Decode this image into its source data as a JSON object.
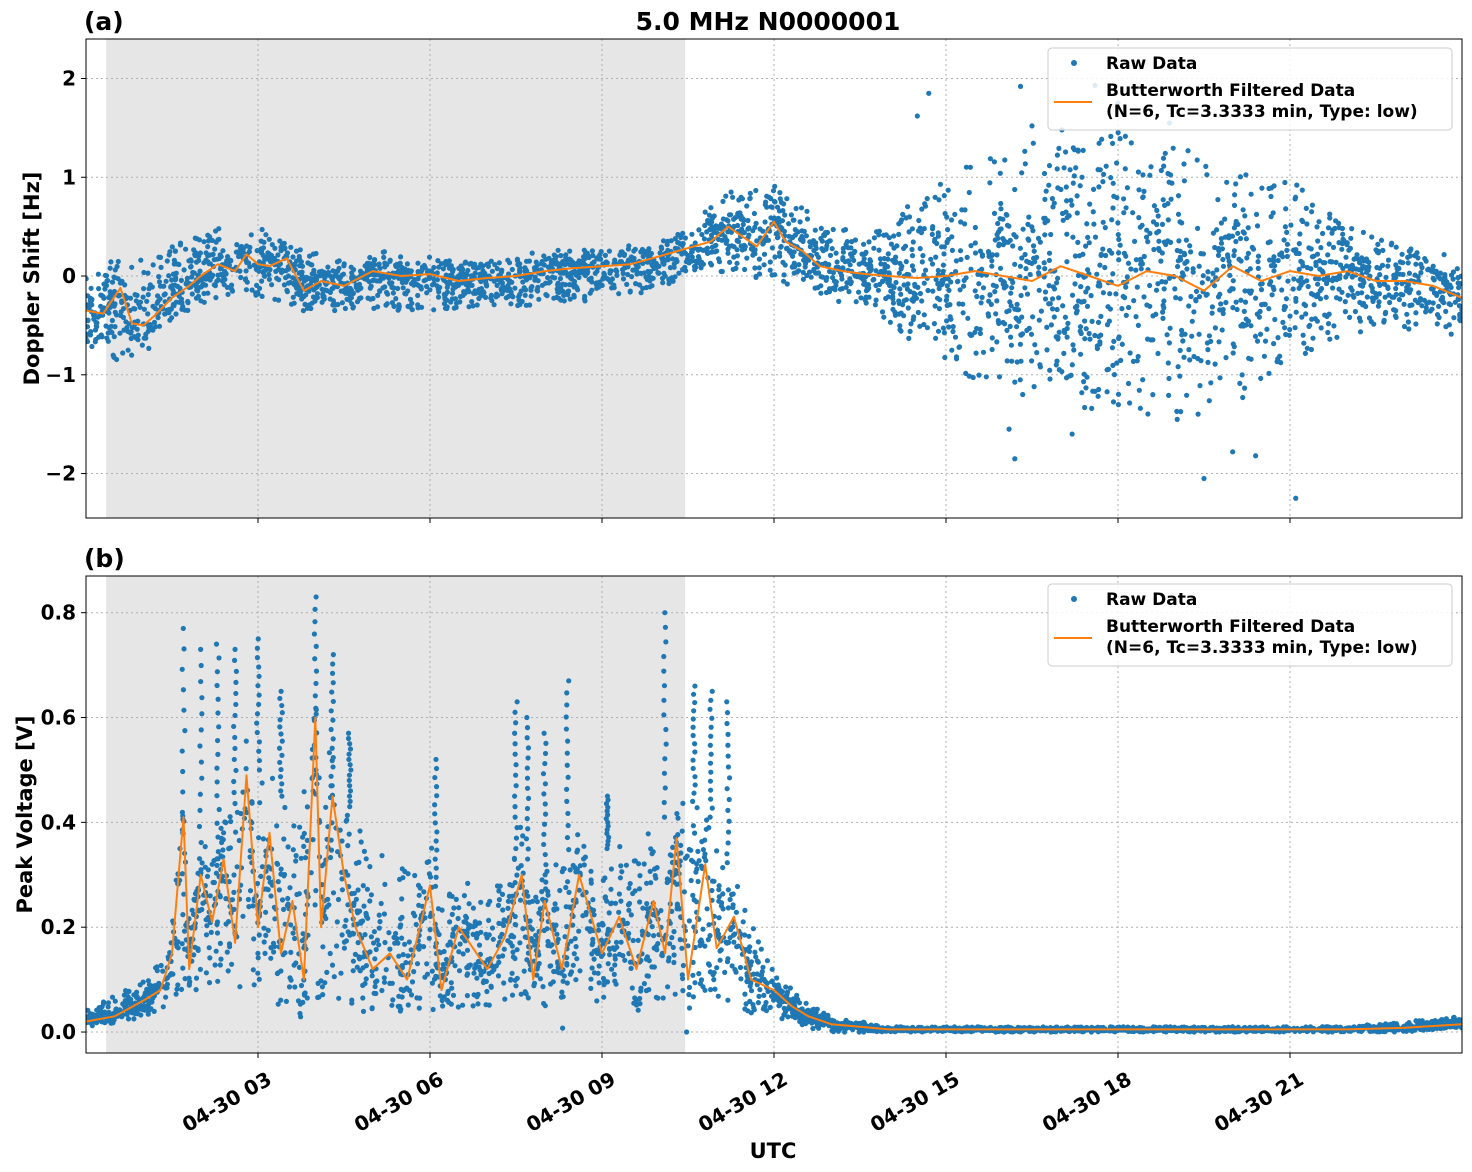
{
  "figure": {
    "title": "5.0 MHz N0000001",
    "xlabel": "UTC",
    "x_tick_labels": [
      "04-30 03",
      "04-30 06",
      "04-30 09",
      "04-30 12",
      "04-30 15",
      "04-30 18",
      "04-30 21"
    ]
  },
  "chart_data": [
    {
      "type": "scatter",
      "panel_label": "(a)",
      "ylabel": "Doppler Shift [Hz]",
      "x_unit": "UTC hour of 04-30",
      "xlim": [
        0.0,
        24.0
      ],
      "ylim": [
        -2.45,
        2.4
      ],
      "yticks": [
        -2,
        -1,
        0,
        1,
        2
      ],
      "ytick_labels": [
        "−2",
        "−1",
        "0",
        "1",
        "2"
      ],
      "xticks": [
        3,
        6,
        9,
        12,
        15,
        18,
        21
      ],
      "grid": true,
      "legend_position": "upper-right",
      "shaded_span": [
        0.35,
        10.45
      ],
      "series": [
        {
          "name": "Raw Data",
          "marker": "point",
          "color": "#1f77b4",
          "envelope_x": [
            0.0,
            0.5,
            1.0,
            1.5,
            2.0,
            2.5,
            3.0,
            3.5,
            4.0,
            5.0,
            6.0,
            7.0,
            8.0,
            9.0,
            10.0,
            10.5,
            11.0,
            11.5,
            12.0,
            12.5,
            13.0,
            13.5,
            14.0,
            15.0,
            16.0,
            17.0,
            18.0,
            19.0,
            20.0,
            21.0,
            22.0,
            23.0,
            24.0
          ],
          "envelope_low": [
            -0.7,
            -0.9,
            -0.7,
            -0.45,
            -0.3,
            -0.2,
            -0.2,
            -0.3,
            -0.35,
            -0.35,
            -0.35,
            -0.3,
            -0.3,
            -0.25,
            -0.15,
            0.0,
            0.05,
            0.0,
            -0.05,
            -0.15,
            -0.25,
            -0.3,
            -0.5,
            -0.9,
            -1.2,
            -1.3,
            -1.4,
            -1.5,
            -1.3,
            -1.0,
            -0.6,
            -0.55,
            -0.6
          ],
          "envelope_high": [
            0.1,
            0.1,
            0.2,
            0.3,
            0.45,
            0.5,
            0.5,
            0.35,
            0.25,
            0.15,
            0.15,
            0.15,
            0.2,
            0.25,
            0.3,
            0.5,
            0.85,
            0.85,
            0.9,
            0.7,
            0.55,
            0.4,
            0.6,
            1.0,
            1.3,
            1.4,
            1.5,
            1.35,
            1.2,
            1.0,
            0.5,
            0.3,
            0.15
          ],
          "outliers": [
            [
              14.7,
              1.85
            ],
            [
              14.5,
              1.62
            ],
            [
              16.3,
              1.92
            ],
            [
              16.5,
              1.52
            ],
            [
              17.6,
              1.93
            ],
            [
              18.0,
              1.75
            ],
            [
              18.9,
              1.55
            ],
            [
              16.2,
              -1.85
            ],
            [
              16.1,
              -1.55
            ],
            [
              19.5,
              -2.05
            ],
            [
              20.0,
              -1.78
            ],
            [
              20.4,
              -1.82
            ],
            [
              21.1,
              -2.25
            ],
            [
              17.2,
              -1.6
            ]
          ]
        },
        {
          "name": "Butterworth Filtered Data\n(N=6, Tc=3.3333 min, Type: low)",
          "color": "#ff7f0e",
          "x": [
            0.0,
            0.3,
            0.6,
            0.8,
            1.0,
            1.2,
            1.5,
            1.8,
            2.0,
            2.3,
            2.6,
            2.8,
            3.0,
            3.2,
            3.5,
            3.8,
            4.1,
            4.5,
            5.0,
            5.5,
            6.0,
            6.5,
            7.0,
            7.5,
            8.0,
            8.5,
            9.0,
            9.5,
            10.0,
            10.3,
            10.6,
            10.9,
            11.2,
            11.5,
            11.7,
            12.0,
            12.2,
            12.5,
            12.8,
            13.2,
            13.6,
            14.0,
            14.5,
            15.0,
            15.5,
            16.0,
            16.5,
            17.0,
            17.5,
            18.0,
            18.5,
            19.0,
            19.5,
            20.0,
            20.5,
            21.0,
            21.5,
            22.0,
            22.5,
            23.0,
            23.5,
            24.0
          ],
          "y": [
            -0.35,
            -0.38,
            -0.12,
            -0.48,
            -0.5,
            -0.4,
            -0.22,
            -0.1,
            0.0,
            0.12,
            0.05,
            0.22,
            0.12,
            0.1,
            0.18,
            -0.15,
            -0.05,
            -0.1,
            0.05,
            0.0,
            0.02,
            -0.05,
            -0.02,
            0.0,
            0.05,
            0.08,
            0.1,
            0.12,
            0.2,
            0.25,
            0.3,
            0.35,
            0.5,
            0.38,
            0.3,
            0.55,
            0.35,
            0.25,
            0.1,
            0.05,
            0.02,
            0.0,
            -0.02,
            0.0,
            0.05,
            0.0,
            -0.05,
            0.1,
            0.0,
            -0.1,
            0.05,
            0.0,
            -0.15,
            0.1,
            -0.05,
            0.05,
            0.0,
            0.05,
            -0.05,
            -0.05,
            -0.1,
            -0.22
          ]
        }
      ]
    },
    {
      "type": "scatter",
      "panel_label": "(b)",
      "ylabel": "Peak Voltage [V]",
      "x_unit": "UTC hour of 04-30",
      "xlim": [
        0.0,
        24.0
      ],
      "ylim": [
        -0.04,
        0.87
      ],
      "yticks": [
        0.0,
        0.2,
        0.4,
        0.6,
        0.8
      ],
      "ytick_labels": [
        "0.0",
        "0.2",
        "0.4",
        "0.6",
        "0.8"
      ],
      "xticks": [
        3,
        6,
        9,
        12,
        15,
        18,
        21
      ],
      "grid": true,
      "legend_position": "upper-right",
      "shaded_span": [
        0.35,
        10.45
      ],
      "series": [
        {
          "name": "Raw Data",
          "marker": "point",
          "color": "#1f77b4",
          "envelope_x": [
            0.0,
            0.5,
            1.0,
            1.5,
            1.75,
            2.0,
            2.5,
            3.0,
            3.5,
            4.0,
            4.5,
            5.0,
            6.0,
            7.0,
            7.5,
            8.0,
            8.5,
            9.0,
            9.5,
            10.0,
            10.5,
            11.0,
            11.5,
            12.0,
            12.5,
            13.0,
            14.0,
            16.0,
            20.0,
            22.0,
            23.0,
            24.0
          ],
          "envelope_low": [
            0.02,
            0.02,
            0.03,
            0.05,
            0.08,
            0.08,
            0.08,
            0.07,
            0.03,
            0.05,
            0.05,
            0.05,
            0.04,
            0.05,
            0.06,
            0.05,
            0.05,
            0.05,
            0.05,
            0.05,
            0.06,
            0.05,
            0.04,
            0.03,
            0.01,
            0.0,
            0.0,
            0.0,
            0.0,
            0.0,
            0.0,
            0.01
          ],
          "envelope_high": [
            0.04,
            0.07,
            0.1,
            0.16,
            0.24,
            0.3,
            0.42,
            0.5,
            0.45,
            0.5,
            0.45,
            0.35,
            0.28,
            0.26,
            0.35,
            0.3,
            0.36,
            0.35,
            0.35,
            0.4,
            0.45,
            0.4,
            0.25,
            0.12,
            0.06,
            0.03,
            0.01,
            0.01,
            0.01,
            0.01,
            0.02,
            0.03
          ],
          "spikes": [
            [
              1.7,
              0.77
            ],
            [
              2.0,
              0.73
            ],
            [
              2.3,
              0.74
            ],
            [
              2.6,
              0.73
            ],
            [
              3.0,
              0.75
            ],
            [
              3.4,
              0.65
            ],
            [
              4.0,
              0.83
            ],
            [
              4.3,
              0.72
            ],
            [
              4.6,
              0.57
            ],
            [
              6.1,
              0.52
            ],
            [
              7.5,
              0.63
            ],
            [
              7.7,
              0.6
            ],
            [
              8.4,
              0.67
            ],
            [
              8.0,
              0.57
            ],
            [
              9.1,
              0.45
            ],
            [
              10.1,
              0.8
            ],
            [
              10.6,
              0.66
            ],
            [
              10.9,
              0.65
            ],
            [
              11.2,
              0.63
            ]
          ]
        },
        {
          "name": "Butterworth Filtered Data\n(N=6, Tc=3.3333 min, Type: low)",
          "color": "#ff7f0e",
          "x": [
            0.0,
            0.5,
            1.0,
            1.3,
            1.5,
            1.7,
            1.8,
            2.0,
            2.2,
            2.4,
            2.6,
            2.8,
            3.0,
            3.2,
            3.4,
            3.6,
            3.8,
            4.0,
            4.1,
            4.3,
            4.5,
            4.7,
            5.0,
            5.3,
            5.6,
            6.0,
            6.2,
            6.5,
            7.0,
            7.3,
            7.6,
            7.8,
            8.0,
            8.3,
            8.6,
            9.0,
            9.3,
            9.6,
            9.9,
            10.1,
            10.3,
            10.5,
            10.8,
            11.0,
            11.3,
            11.6,
            12.0,
            12.3,
            12.6,
            13.0,
            13.5,
            14.0,
            16.0,
            18.0,
            20.0,
            22.0,
            23.0,
            24.0
          ],
          "y": [
            0.02,
            0.03,
            0.06,
            0.08,
            0.15,
            0.41,
            0.12,
            0.3,
            0.21,
            0.33,
            0.17,
            0.49,
            0.2,
            0.38,
            0.15,
            0.25,
            0.1,
            0.6,
            0.2,
            0.45,
            0.3,
            0.2,
            0.12,
            0.15,
            0.1,
            0.28,
            0.08,
            0.2,
            0.12,
            0.18,
            0.3,
            0.1,
            0.25,
            0.12,
            0.3,
            0.15,
            0.22,
            0.12,
            0.25,
            0.15,
            0.37,
            0.1,
            0.32,
            0.16,
            0.22,
            0.1,
            0.08,
            0.05,
            0.03,
            0.015,
            0.01,
            0.005,
            0.005,
            0.005,
            0.005,
            0.005,
            0.008,
            0.015
          ]
        }
      ]
    }
  ]
}
